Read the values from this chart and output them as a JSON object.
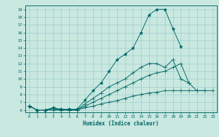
{
  "xlabel": "Humidex (Indice chaleur)",
  "ylabel": "",
  "background_color": "#c8e8e0",
  "grid_color": "#a0cccc",
  "line_color": "#006868",
  "series": [
    {
      "x": [
        0,
        1,
        2,
        3,
        4,
        5,
        6,
        7,
        8,
        9,
        10,
        11,
        12,
        13,
        14,
        15,
        16,
        17,
        18,
        19
      ],
      "y": [
        6.5,
        6.0,
        6.0,
        6.3,
        6.1,
        6.1,
        6.1,
        7.3,
        8.5,
        9.5,
        11.0,
        12.5,
        13.2,
        14.0,
        16.0,
        18.3,
        19.0,
        19.0,
        16.5,
        14.2
      ]
    },
    {
      "x": [
        0,
        1,
        2,
        3,
        4,
        5,
        6,
        7,
        8,
        9,
        10,
        11,
        12,
        13,
        14,
        15,
        16,
        17,
        18,
        19,
        20
      ],
      "y": [
        6.5,
        6.0,
        6.0,
        6.2,
        6.0,
        6.0,
        6.0,
        6.8,
        7.5,
        8.2,
        9.0,
        9.5,
        10.0,
        10.8,
        11.5,
        12.0,
        12.0,
        11.5,
        12.5,
        10.0,
        9.5
      ]
    },
    {
      "x": [
        0,
        1,
        2,
        3,
        4,
        5,
        6,
        7,
        8,
        9,
        10,
        11,
        12,
        13,
        14,
        15,
        16,
        17,
        18,
        19,
        20,
        21,
        22
      ],
      "y": [
        6.5,
        6.0,
        6.0,
        6.2,
        6.0,
        6.0,
        6.0,
        6.5,
        7.0,
        7.5,
        8.0,
        8.5,
        9.0,
        9.5,
        10.0,
        10.5,
        10.8,
        11.0,
        11.5,
        12.0,
        9.5,
        8.5,
        8.5
      ]
    },
    {
      "x": [
        0,
        1,
        2,
        3,
        4,
        5,
        6,
        7,
        8,
        9,
        10,
        11,
        12,
        13,
        14,
        15,
        16,
        17,
        18,
        19,
        20,
        21,
        22,
        23
      ],
      "y": [
        6.5,
        6.0,
        6.0,
        6.0,
        6.0,
        6.0,
        6.0,
        6.3,
        6.5,
        6.8,
        7.0,
        7.2,
        7.5,
        7.8,
        8.0,
        8.2,
        8.3,
        8.5,
        8.5,
        8.5,
        8.5,
        8.5,
        8.5,
        8.5
      ]
    }
  ],
  "ylim": [
    5.7,
    19.5
  ],
  "xlim": [
    -0.5,
    23.5
  ],
  "yticks": [
    6,
    7,
    8,
    9,
    10,
    11,
    12,
    13,
    14,
    15,
    16,
    17,
    18,
    19
  ],
  "xticks": [
    0,
    1,
    2,
    3,
    4,
    5,
    6,
    7,
    8,
    9,
    10,
    11,
    12,
    13,
    14,
    15,
    16,
    17,
    18,
    19,
    20,
    21,
    22,
    23
  ]
}
